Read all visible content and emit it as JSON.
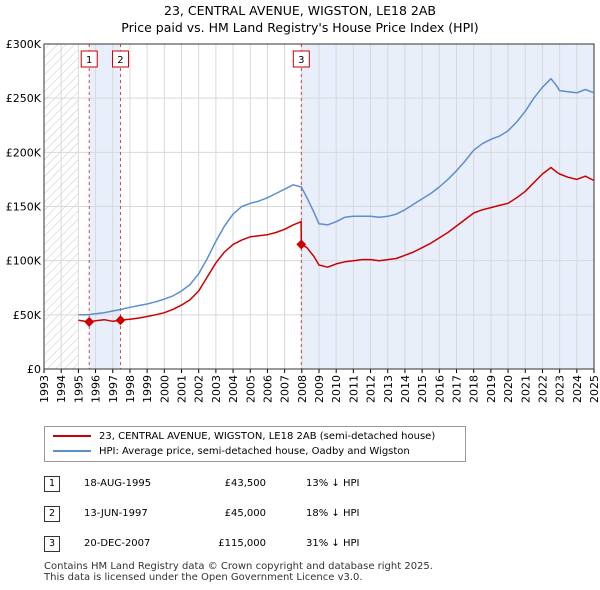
{
  "chart_data": {
    "type": "line",
    "title": "23, CENTRAL AVENUE, WIGSTON, LE18 2AB",
    "subtitle": "Price paid vs. HM Land Registry's House Price Index (HPI)",
    "xlim": [
      1993.0,
      2025.0
    ],
    "ylim": [
      0,
      300000
    ],
    "x_ticks": [
      "1993",
      "1994",
      "1995",
      "1996",
      "1997",
      "1998",
      "1999",
      "2000",
      "2001",
      "2002",
      "2003",
      "2004",
      "2005",
      "2006",
      "2007",
      "2008",
      "2009",
      "2010",
      "2011",
      "2012",
      "2013",
      "2014",
      "2015",
      "2016",
      "2017",
      "2018",
      "2019",
      "2020",
      "2021",
      "2022",
      "2023",
      "2024",
      "2025"
    ],
    "y_ticks": [
      {
        "value": 0,
        "label": "£0"
      },
      {
        "value": 50000,
        "label": "£50K"
      },
      {
        "value": 100000,
        "label": "£100K"
      },
      {
        "value": 150000,
        "label": "£150K"
      },
      {
        "value": 200000,
        "label": "£200K"
      },
      {
        "value": 250000,
        "label": "£250K"
      },
      {
        "value": 300000,
        "label": "£300K"
      }
    ],
    "hatched_until": 1995.0,
    "shaded_ranges": [
      [
        1995.63,
        1997.45
      ],
      [
        2007.97,
        2025.0
      ]
    ],
    "series": [
      {
        "name": "23, CENTRAL AVENUE, WIGSTON, LE18 2AB (semi-detached house)",
        "color": "#cc0000",
        "x": [
          1995.0,
          1995.63,
          1996.0,
          1996.5,
          1997.0,
          1997.45,
          1998.0,
          1998.5,
          1999.0,
          1999.5,
          2000.0,
          2000.5,
          2001.0,
          2001.5,
          2002.0,
          2002.5,
          2003.0,
          2003.5,
          2004.0,
          2004.5,
          2005.0,
          2005.5,
          2006.0,
          2006.5,
          2007.0,
          2007.5,
          2007.96,
          2007.97,
          2008.3,
          2008.7,
          2009.0,
          2009.5,
          2010.0,
          2010.5,
          2011.0,
          2011.5,
          2012.0,
          2012.5,
          2013.0,
          2013.5,
          2014.0,
          2014.5,
          2015.0,
          2015.5,
          2016.0,
          2016.5,
          2017.0,
          2017.5,
          2018.0,
          2018.5,
          2019.0,
          2019.5,
          2020.0,
          2020.5,
          2021.0,
          2021.5,
          2022.0,
          2022.5,
          2022.8,
          2023.0,
          2023.5,
          2024.0,
          2024.5,
          2025.0
        ],
        "values": [
          45000,
          43500,
          44500,
          45500,
          44000,
          45000,
          46000,
          47000,
          48500,
          50000,
          52000,
          55000,
          59000,
          64000,
          72000,
          85000,
          98000,
          108000,
          115000,
          119000,
          122000,
          123000,
          124000,
          126000,
          129000,
          133000,
          136000,
          115000,
          112000,
          104000,
          96000,
          94000,
          97000,
          99000,
          100000,
          101000,
          101000,
          100000,
          101000,
          102000,
          105000,
          108000,
          112000,
          116000,
          121000,
          126000,
          132000,
          138000,
          144000,
          147000,
          149000,
          151000,
          153000,
          158000,
          164000,
          172000,
          180000,
          186000,
          182000,
          180000,
          177000,
          175000,
          178000,
          174000
        ]
      },
      {
        "name": "HPI: Average price, semi-detached house, Oadby and Wigston",
        "color": "#5b8fd0",
        "x": [
          1995.0,
          1995.5,
          1996.0,
          1996.5,
          1997.0,
          1997.5,
          1998.0,
          1998.5,
          1999.0,
          1999.5,
          2000.0,
          2000.5,
          2001.0,
          2001.5,
          2002.0,
          2002.5,
          2003.0,
          2003.5,
          2004.0,
          2004.5,
          2005.0,
          2005.5,
          2006.0,
          2006.5,
          2007.0,
          2007.5,
          2007.97,
          2008.3,
          2008.7,
          2009.0,
          2009.5,
          2010.0,
          2010.5,
          2011.0,
          2011.5,
          2012.0,
          2012.5,
          2013.0,
          2013.5,
          2014.0,
          2014.5,
          2015.0,
          2015.5,
          2016.0,
          2016.5,
          2017.0,
          2017.5,
          2018.0,
          2018.5,
          2019.0,
          2019.5,
          2020.0,
          2020.5,
          2021.0,
          2021.5,
          2022.0,
          2022.5,
          2022.8,
          2023.0,
          2023.5,
          2024.0,
          2024.5,
          2025.0
        ],
        "values": [
          50000,
          50000,
          51000,
          52000,
          53500,
          55000,
          57000,
          58500,
          60000,
          62000,
          64500,
          67500,
          72000,
          78000,
          88000,
          102000,
          118000,
          132000,
          143000,
          150000,
          153000,
          155000,
          158000,
          162000,
          166000,
          170000,
          168000,
          158000,
          145000,
          134000,
          133000,
          136000,
          140000,
          141000,
          141000,
          141000,
          140000,
          141000,
          143000,
          147000,
          152000,
          157000,
          162000,
          168000,
          175000,
          183000,
          192000,
          202000,
          208000,
          212000,
          215000,
          220000,
          228000,
          238000,
          250000,
          260000,
          268000,
          262000,
          257000,
          256000,
          255000,
          258000,
          255000
        ]
      }
    ],
    "markers": [
      {
        "id": "1",
        "x": 1995.63,
        "value": 43500
      },
      {
        "id": "2",
        "x": 1997.45,
        "value": 45000
      },
      {
        "id": "3",
        "x": 2007.97,
        "value": 115000
      }
    ]
  },
  "legend": {
    "items": [
      {
        "label": "23, CENTRAL AVENUE, WIGSTON, LE18 2AB (semi-detached house)",
        "color": "#cc0000"
      },
      {
        "label": "HPI: Average price, semi-detached house, Oadby and Wigston",
        "color": "#5b8fd0"
      }
    ]
  },
  "sales": [
    {
      "num": "1",
      "date": "18-AUG-1995",
      "price": "£43,500",
      "hpi": "13% ↓ HPI"
    },
    {
      "num": "2",
      "date": "13-JUN-1997",
      "price": "£45,000",
      "hpi": "18% ↓ HPI"
    },
    {
      "num": "3",
      "date": "20-DEC-2007",
      "price": "£115,000",
      "hpi": "31% ↓ HPI"
    }
  ],
  "footer": {
    "line1": "Contains HM Land Registry data © Crown copyright and database right 2025.",
    "line2": "This data is licensed under the Open Government Licence v3.0."
  }
}
